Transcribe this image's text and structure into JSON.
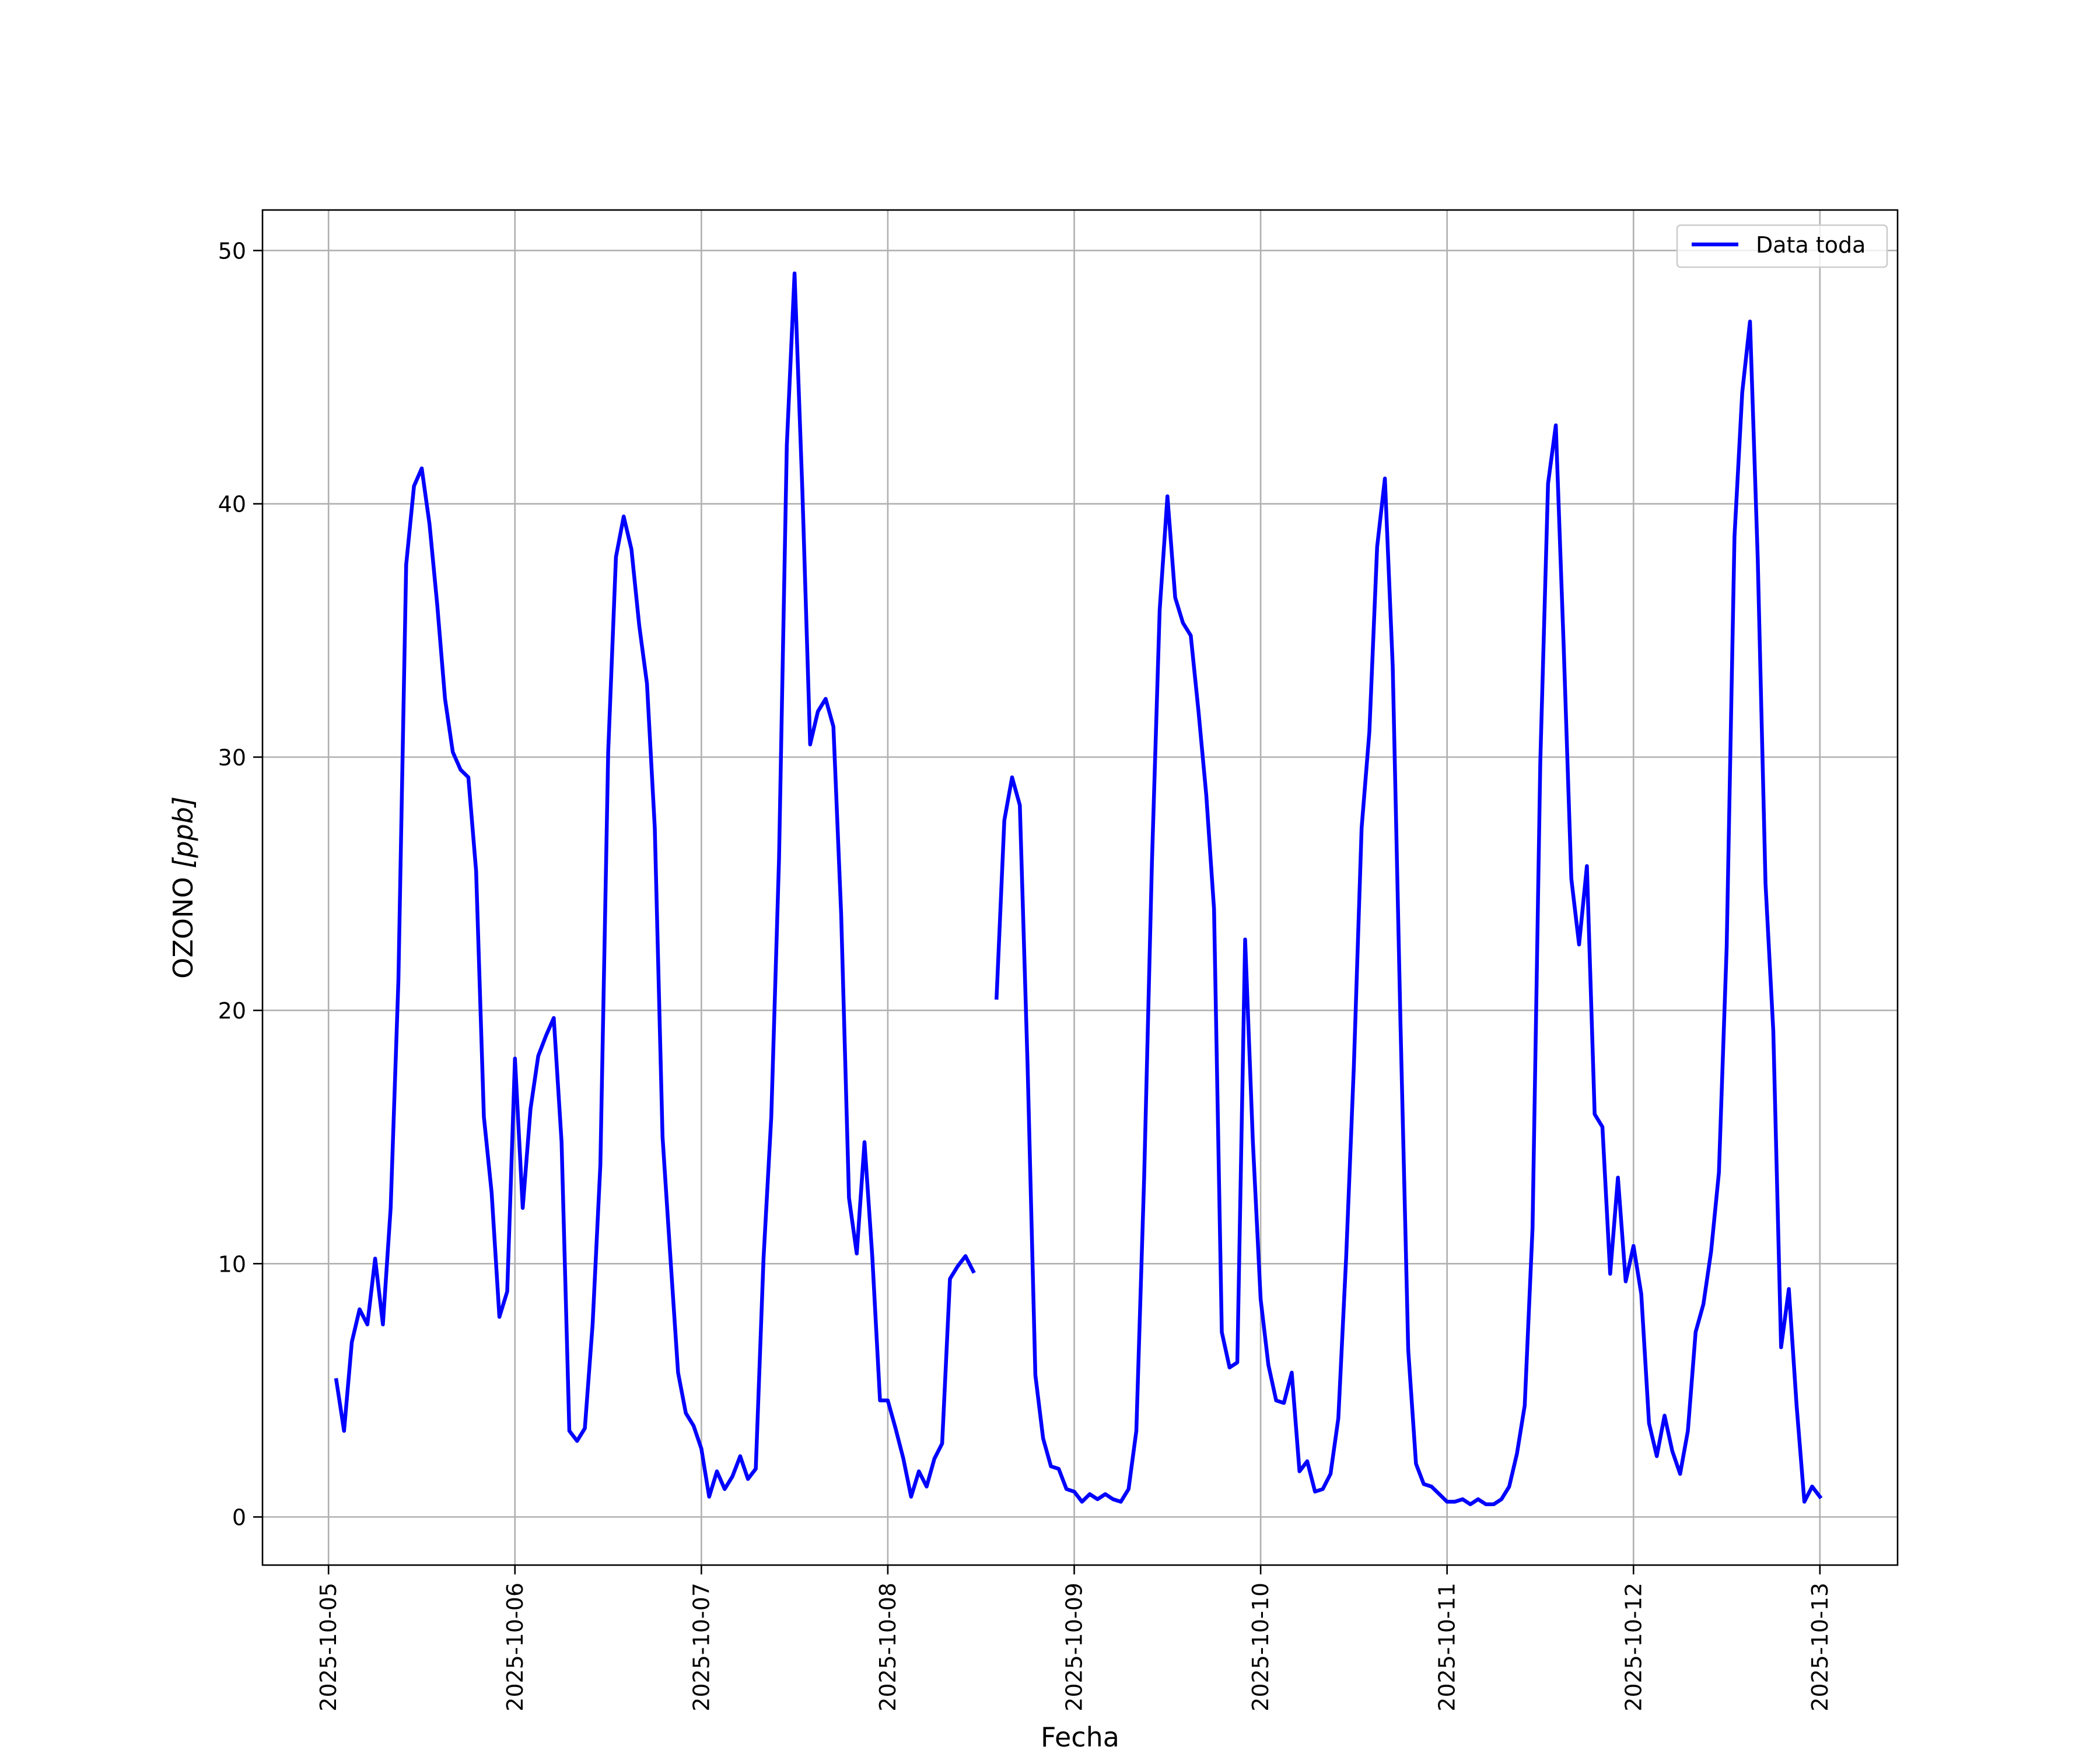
{
  "chart_data": {
    "type": "line",
    "title": "",
    "xlabel": "Fecha",
    "ylabel_text": "OZONO ",
    "ylabel_unit": "[ppb]",
    "x_tick_labels": [
      "2025-10-05",
      "2025-10-06",
      "2025-10-07",
      "2025-10-08",
      "2025-10-09",
      "2025-10-10",
      "2025-10-11",
      "2025-10-12",
      "2025-10-13"
    ],
    "y_ticks": [
      0,
      10,
      20,
      30,
      40,
      50
    ],
    "ylim": [
      -1.9,
      51.6
    ],
    "xlim": [
      "2025-10-04 15:30",
      "2025-10-13 10:00"
    ],
    "grid": true,
    "legend_position": "upper right",
    "series": [
      {
        "name": "Data toda",
        "color": "#0000ff",
        "points": [
          [
            "2025-10-05 01:00",
            5.4
          ],
          [
            "2025-10-05 02:00",
            3.4
          ],
          [
            "2025-10-05 03:00",
            6.9
          ],
          [
            "2025-10-05 04:00",
            8.2
          ],
          [
            "2025-10-05 05:00",
            7.6
          ],
          [
            "2025-10-05 06:00",
            10.2
          ],
          [
            "2025-10-05 07:00",
            7.6
          ],
          [
            "2025-10-05 08:00",
            12.2
          ],
          [
            "2025-10-05 09:00",
            21.2
          ],
          [
            "2025-10-05 10:00",
            37.6
          ],
          [
            "2025-10-05 11:00",
            40.7
          ],
          [
            "2025-10-05 12:00",
            41.4
          ],
          [
            "2025-10-05 13:00",
            39.2
          ],
          [
            "2025-10-05 14:00",
            36.0
          ],
          [
            "2025-10-05 15:00",
            32.3
          ],
          [
            "2025-10-05 16:00",
            30.2
          ],
          [
            "2025-10-05 17:00",
            29.5
          ],
          [
            "2025-10-05 18:00",
            29.2
          ],
          [
            "2025-10-05 19:00",
            25.5
          ],
          [
            "2025-10-05 20:00",
            15.8
          ],
          [
            "2025-10-05 21:00",
            12.8
          ],
          [
            "2025-10-05 22:00",
            7.9
          ],
          [
            "2025-10-05 23:00",
            8.9
          ],
          [
            "2025-10-06 00:00",
            18.1
          ],
          [
            "2025-10-06 01:00",
            12.2
          ],
          [
            "2025-10-06 02:00",
            16.1
          ],
          [
            "2025-10-06 03:00",
            18.2
          ],
          [
            "2025-10-06 04:00",
            19.0
          ],
          [
            "2025-10-06 05:00",
            19.7
          ],
          [
            "2025-10-06 06:00",
            14.8
          ],
          [
            "2025-10-06 07:00",
            3.4
          ],
          [
            "2025-10-06 08:00",
            3.0
          ],
          [
            "2025-10-06 09:00",
            3.5
          ],
          [
            "2025-10-06 10:00",
            7.6
          ],
          [
            "2025-10-06 11:00",
            13.9
          ],
          [
            "2025-10-06 12:00",
            30.2
          ],
          [
            "2025-10-06 13:00",
            37.9
          ],
          [
            "2025-10-06 14:00",
            39.5
          ],
          [
            "2025-10-06 15:00",
            38.2
          ],
          [
            "2025-10-06 16:00",
            35.2
          ],
          [
            "2025-10-06 17:00",
            32.9
          ],
          [
            "2025-10-06 18:00",
            27.2
          ],
          [
            "2025-10-06 19:00",
            15.0
          ],
          [
            "2025-10-06 20:00",
            10.3
          ],
          [
            "2025-10-06 21:00",
            5.7
          ],
          [
            "2025-10-06 22:00",
            4.1
          ],
          [
            "2025-10-06 23:00",
            3.6
          ],
          [
            "2025-10-07 00:00",
            2.7
          ],
          [
            "2025-10-07 01:00",
            0.8
          ],
          [
            "2025-10-07 02:00",
            1.8
          ],
          [
            "2025-10-07 03:00",
            1.1
          ],
          [
            "2025-10-07 04:00",
            1.6
          ],
          [
            "2025-10-07 05:00",
            2.4
          ],
          [
            "2025-10-07 06:00",
            1.5
          ],
          [
            "2025-10-07 07:00",
            1.9
          ],
          [
            "2025-10-07 08:00",
            10.2
          ],
          [
            "2025-10-07 09:00",
            15.8
          ],
          [
            "2025-10-07 10:00",
            26.0
          ],
          [
            "2025-10-07 11:00",
            42.3
          ],
          [
            "2025-10-07 12:00",
            49.1
          ],
          [
            "2025-10-07 13:00",
            40.5
          ],
          [
            "2025-10-07 14:00",
            30.5
          ],
          [
            "2025-10-07 15:00",
            31.8
          ],
          [
            "2025-10-07 16:00",
            32.3
          ],
          [
            "2025-10-07 17:00",
            31.2
          ],
          [
            "2025-10-07 18:00",
            23.8
          ],
          [
            "2025-10-07 19:00",
            12.6
          ],
          [
            "2025-10-07 20:00",
            10.4
          ],
          [
            "2025-10-07 21:00",
            14.8
          ],
          [
            "2025-10-07 22:00",
            10.3
          ],
          [
            "2025-10-07 23:00",
            4.6
          ],
          [
            "2025-10-08 00:00",
            4.6
          ],
          [
            "2025-10-08 01:00",
            3.5
          ],
          [
            "2025-10-08 02:00",
            2.3
          ],
          [
            "2025-10-08 03:00",
            0.8
          ],
          [
            "2025-10-08 04:00",
            1.8
          ],
          [
            "2025-10-08 05:00",
            1.2
          ],
          [
            "2025-10-08 06:00",
            2.3
          ],
          [
            "2025-10-08 07:00",
            2.9
          ],
          [
            "2025-10-08 08:00",
            9.4
          ],
          [
            "2025-10-08 09:00",
            9.9
          ],
          [
            "2025-10-08 10:00",
            10.3
          ],
          [
            "2025-10-08 11:00",
            9.7
          ],
          null,
          [
            "2025-10-08 14:00",
            20.5
          ],
          [
            "2025-10-08 15:00",
            27.5
          ],
          [
            "2025-10-08 16:00",
            29.2
          ],
          [
            "2025-10-08 17:00",
            28.1
          ],
          [
            "2025-10-08 18:00",
            17.8
          ],
          [
            "2025-10-08 19:00",
            5.6
          ],
          [
            "2025-10-08 20:00",
            3.1
          ],
          [
            "2025-10-08 21:00",
            2.0
          ],
          [
            "2025-10-08 22:00",
            1.9
          ],
          [
            "2025-10-08 23:00",
            1.1
          ],
          [
            "2025-10-09 00:00",
            1.0
          ],
          [
            "2025-10-09 01:00",
            0.6
          ],
          [
            "2025-10-09 02:00",
            0.9
          ],
          [
            "2025-10-09 03:00",
            0.7
          ],
          [
            "2025-10-09 04:00",
            0.9
          ],
          [
            "2025-10-09 05:00",
            0.7
          ],
          [
            "2025-10-09 06:00",
            0.6
          ],
          [
            "2025-10-09 07:00",
            1.1
          ],
          [
            "2025-10-09 08:00",
            3.4
          ],
          [
            "2025-10-09 09:00",
            13.4
          ],
          [
            "2025-10-09 10:00",
            25.8
          ],
          [
            "2025-10-09 11:00",
            35.8
          ],
          [
            "2025-10-09 12:00",
            40.3
          ],
          [
            "2025-10-09 13:00",
            36.3
          ],
          [
            "2025-10-09 14:00",
            35.3
          ],
          [
            "2025-10-09 15:00",
            34.8
          ],
          [
            "2025-10-09 16:00",
            31.8
          ],
          [
            "2025-10-09 17:00",
            28.5
          ],
          [
            "2025-10-09 18:00",
            24.0
          ],
          [
            "2025-10-09 19:00",
            7.3
          ],
          [
            "2025-10-09 20:00",
            5.9
          ],
          [
            "2025-10-09 21:00",
            6.1
          ],
          [
            "2025-10-09 22:00",
            22.8
          ],
          [
            "2025-10-09 23:00",
            14.8
          ],
          [
            "2025-10-10 00:00",
            8.6
          ],
          [
            "2025-10-10 01:00",
            6.0
          ],
          [
            "2025-10-10 02:00",
            4.6
          ],
          [
            "2025-10-10 03:00",
            4.5
          ],
          [
            "2025-10-10 04:00",
            5.7
          ],
          [
            "2025-10-10 05:00",
            1.8
          ],
          [
            "2025-10-10 06:00",
            2.2
          ],
          [
            "2025-10-10 07:00",
            1.0
          ],
          [
            "2025-10-10 08:00",
            1.1
          ],
          [
            "2025-10-10 09:00",
            1.7
          ],
          [
            "2025-10-10 10:00",
            3.9
          ],
          [
            "2025-10-10 11:00",
            10.2
          ],
          [
            "2025-10-10 12:00",
            17.8
          ],
          [
            "2025-10-10 13:00",
            27.2
          ],
          [
            "2025-10-10 14:00",
            31.0
          ],
          [
            "2025-10-10 15:00",
            38.3
          ],
          [
            "2025-10-10 16:00",
            41.0
          ],
          [
            "2025-10-10 17:00",
            33.6
          ],
          [
            "2025-10-10 18:00",
            19.5
          ],
          [
            "2025-10-10 19:00",
            6.6
          ],
          [
            "2025-10-10 20:00",
            2.1
          ],
          [
            "2025-10-10 21:00",
            1.3
          ],
          [
            "2025-10-10 22:00",
            1.2
          ],
          [
            "2025-10-10 23:00",
            0.9
          ],
          [
            "2025-10-11 00:00",
            0.6
          ],
          [
            "2025-10-11 01:00",
            0.6
          ],
          [
            "2025-10-11 02:00",
            0.7
          ],
          [
            "2025-10-11 03:00",
            0.5
          ],
          [
            "2025-10-11 04:00",
            0.7
          ],
          [
            "2025-10-11 05:00",
            0.5
          ],
          [
            "2025-10-11 06:00",
            0.5
          ],
          [
            "2025-10-11 07:00",
            0.7
          ],
          [
            "2025-10-11 08:00",
            1.2
          ],
          [
            "2025-10-11 09:00",
            2.5
          ],
          [
            "2025-10-11 10:00",
            4.4
          ],
          [
            "2025-10-11 11:00",
            11.4
          ],
          [
            "2025-10-11 12:00",
            29.8
          ],
          [
            "2025-10-11 13:00",
            40.8
          ],
          [
            "2025-10-11 14:00",
            43.1
          ],
          [
            "2025-10-11 15:00",
            34.5
          ],
          [
            "2025-10-11 16:00",
            25.2
          ],
          [
            "2025-10-11 17:00",
            22.6
          ],
          [
            "2025-10-11 18:00",
            25.7
          ],
          [
            "2025-10-11 19:00",
            15.9
          ],
          [
            "2025-10-11 20:00",
            15.4
          ],
          [
            "2025-10-11 21:00",
            9.6
          ],
          [
            "2025-10-11 22:00",
            13.4
          ],
          [
            "2025-10-11 23:00",
            9.3
          ],
          [
            "2025-10-12 00:00",
            10.7
          ],
          [
            "2025-10-12 01:00",
            8.8
          ],
          [
            "2025-10-12 02:00",
            3.7
          ],
          [
            "2025-10-12 03:00",
            2.4
          ],
          [
            "2025-10-12 04:00",
            4.0
          ],
          [
            "2025-10-12 05:00",
            2.6
          ],
          [
            "2025-10-12 06:00",
            1.7
          ],
          [
            "2025-10-12 07:00",
            3.4
          ],
          [
            "2025-10-12 08:00",
            7.3
          ],
          [
            "2025-10-12 09:00",
            8.4
          ],
          [
            "2025-10-12 10:00",
            10.5
          ],
          [
            "2025-10-12 11:00",
            13.6
          ],
          [
            "2025-10-12 12:00",
            22.5
          ],
          [
            "2025-10-12 13:00",
            38.7
          ],
          [
            "2025-10-12 14:00",
            44.4
          ],
          [
            "2025-10-12 15:00",
            47.2
          ],
          [
            "2025-10-12 16:00",
            37.8
          ],
          [
            "2025-10-12 17:00",
            25.0
          ],
          [
            "2025-10-12 18:00",
            19.2
          ],
          [
            "2025-10-12 19:00",
            6.7
          ],
          [
            "2025-10-12 20:00",
            9.0
          ],
          [
            "2025-10-12 21:00",
            4.4
          ],
          [
            "2025-10-12 22:00",
            0.6
          ],
          [
            "2025-10-12 23:00",
            1.2
          ],
          [
            "2025-10-13 00:00",
            0.8
          ]
        ]
      }
    ]
  }
}
